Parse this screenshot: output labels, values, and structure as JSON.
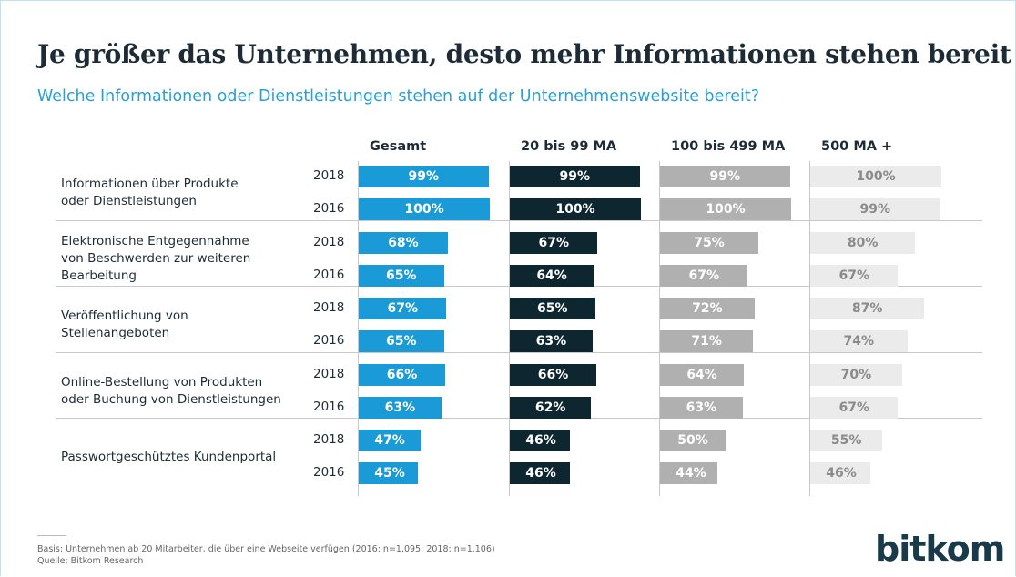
{
  "chart_data": {
    "type": "bar",
    "title": "Je größer das Unternehmen, desto mehr Informationen stehen bereit",
    "subtitle": "Welche Informationen oder Dienstleistungen stehen auf der Unternehmenswebsite bereit?",
    "years": [
      "2018",
      "2016"
    ],
    "categories": [
      [
        "Informationen über Produkte",
        "oder Dienstleistungen"
      ],
      [
        "Elektronische Entgegennahme",
        "von Beschwerden zur weiteren",
        "Bearbeitung"
      ],
      [
        "Veröffentlichung von",
        "Stellenangeboten"
      ],
      [
        "Online-Bestellung von Produkten",
        "oder Buchung von Dienstleistungen"
      ],
      [
        "Passwortgeschütztes Kundenportal"
      ]
    ],
    "xlim": [
      0,
      100
    ],
    "series": [
      {
        "name": "Gesamt",
        "color": "#1a9ad6",
        "label_color": "#ffffff",
        "values": [
          [
            99,
            100
          ],
          [
            68,
            65
          ],
          [
            67,
            65
          ],
          [
            66,
            63
          ],
          [
            47,
            45
          ]
        ],
        "value_labels": [
          [
            "99%",
            "100%"
          ],
          [
            "68%",
            "65%"
          ],
          [
            "67%",
            "65%"
          ],
          [
            "66%",
            "63%"
          ],
          [
            "47%",
            "45%"
          ]
        ]
      },
      {
        "name": "20 bis 99 MA",
        "color": "#0d2630",
        "label_color": "#ffffff",
        "values": [
          [
            99,
            100
          ],
          [
            67,
            64
          ],
          [
            65,
            63
          ],
          [
            66,
            62
          ],
          [
            46,
            46
          ]
        ],
        "value_labels": [
          [
            "99%",
            "100%"
          ],
          [
            "67%",
            "64%"
          ],
          [
            "65%",
            "63%"
          ],
          [
            "66%",
            "62%"
          ],
          [
            "46%",
            "46%"
          ]
        ]
      },
      {
        "name": "100 bis 499 MA",
        "color": "#b0b0b0",
        "label_color": "#ffffff",
        "values": [
          [
            99,
            100
          ],
          [
            75,
            67
          ],
          [
            72,
            71
          ],
          [
            64,
            63
          ],
          [
            50,
            44
          ]
        ],
        "value_labels": [
          [
            "99%",
            "100%"
          ],
          [
            "75%",
            "67%"
          ],
          [
            "72%",
            "71%"
          ],
          [
            "64%",
            "63%"
          ],
          [
            "50%",
            "44%"
          ]
        ]
      },
      {
        "name": "500 MA +",
        "color": "#ebebeb",
        "label_color": "#8a8a8a",
        "values": [
          [
            100,
            99
          ],
          [
            80,
            67
          ],
          [
            87,
            74
          ],
          [
            70,
            67
          ],
          [
            55,
            46
          ]
        ],
        "value_labels": [
          [
            "100%",
            "99%"
          ],
          [
            "80%",
            "67%"
          ],
          [
            "87%",
            "74%"
          ],
          [
            "70%",
            "67%"
          ],
          [
            "55%",
            "46%"
          ]
        ]
      }
    ],
    "footnotes": [
      "Basis: Unternehmen ab 20 Mitarbeiter, die über eine Webseite verfügen (2016: n=1.095; 2018: n=1.106)",
      "Quelle: Bitkom Research"
    ],
    "logo": "bitkom"
  }
}
